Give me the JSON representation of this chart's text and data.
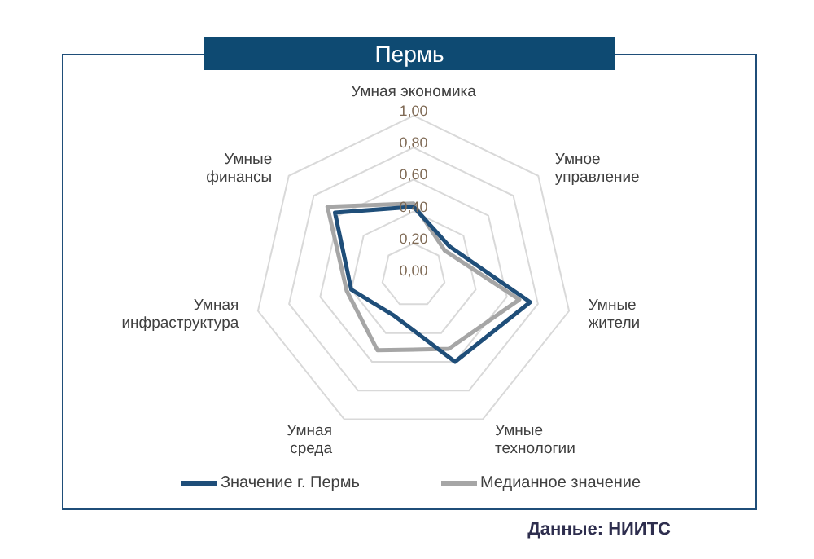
{
  "chart_data": {
    "type": "radar",
    "title": "Пермь",
    "categories": [
      "Умная экономика",
      "Умное управление",
      "Умные жители",
      "Умные технологии",
      "Умная среда",
      "Умная инфраструктура",
      "Умные финансы"
    ],
    "series": [
      {
        "name": "Значение г. Пермь",
        "color": "#1f4e79",
        "values": [
          0.43,
          0.29,
          0.75,
          0.6,
          0.28,
          0.4,
          0.63
        ]
      },
      {
        "name": "Медианное значение",
        "color": "#a6a6a6",
        "values": [
          0.45,
          0.25,
          0.68,
          0.51,
          0.52,
          0.43,
          0.69
        ]
      }
    ],
    "ylim": [
      0,
      1
    ],
    "yticks": [
      {
        "value": 0,
        "label": "0,00"
      },
      {
        "value": 0.2,
        "label": "0,20"
      },
      {
        "value": 0.4,
        "label": "0,40"
      },
      {
        "value": 0.6,
        "label": "0,60"
      },
      {
        "value": 0.8,
        "label": "0,80"
      },
      {
        "value": 1,
        "label": "1,00"
      }
    ],
    "grid": true,
    "legend": "bottom",
    "marker": "none",
    "annotations": [
      "Данные: НИИТС"
    ]
  }
}
